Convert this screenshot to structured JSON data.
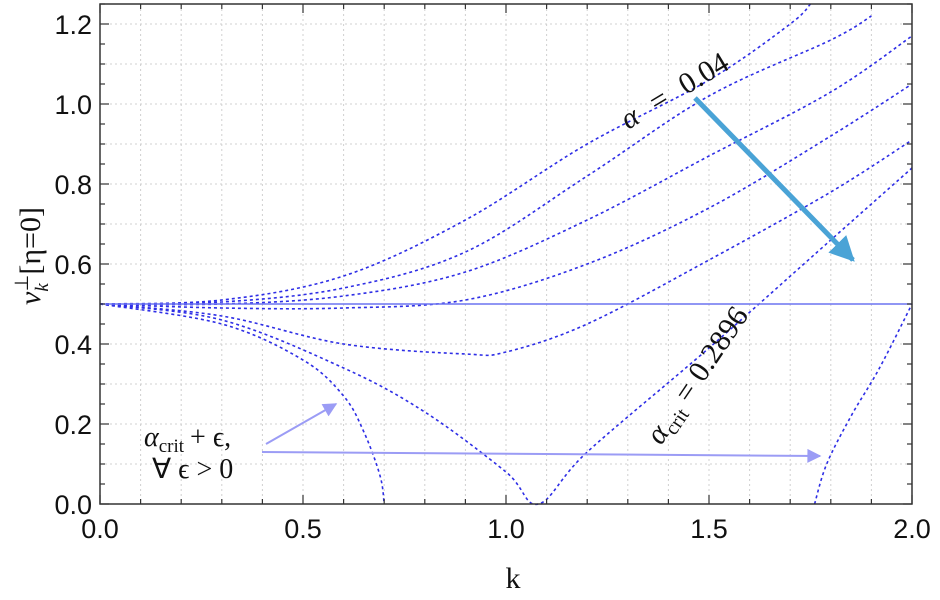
{
  "chart_data": {
    "type": "line",
    "xlabel": "k",
    "ylabel": "v_k^⊥[η=0]",
    "ylabel_parts": {
      "base": "v",
      "sub": "k",
      "sup": "⊥",
      "bracket": "[η=0]"
    },
    "xlim": [
      0,
      2.0
    ],
    "ylim": [
      0,
      1.25
    ],
    "x_ticks": [
      "0.0",
      "0.5",
      "1.0",
      "1.5",
      "2.0"
    ],
    "y_ticks": [
      "0.0",
      "0.2",
      "0.4",
      "0.6",
      "0.8",
      "1.0",
      "1.2"
    ],
    "grid": true,
    "series": [
      {
        "style": "dashed",
        "color": "#2e2ee6",
        "points": [
          [
            0,
            0.5
          ],
          [
            0.3,
            0.51
          ],
          [
            0.6,
            0.57
          ],
          [
            0.9,
            0.71
          ],
          [
            1.2,
            0.9
          ],
          [
            1.5,
            1.06
          ],
          [
            1.7,
            1.2
          ],
          [
            1.75,
            1.25
          ]
        ]
      },
      {
        "style": "dashed",
        "color": "#2e2ee6",
        "points": [
          [
            0,
            0.5
          ],
          [
            0.3,
            0.505
          ],
          [
            0.6,
            0.54
          ],
          [
            0.9,
            0.63
          ],
          [
            1.2,
            0.82
          ],
          [
            1.5,
            1.02
          ],
          [
            1.8,
            1.16
          ],
          [
            1.9,
            1.22
          ]
        ]
      },
      {
        "style": "dashed",
        "color": "#2e2ee6",
        "points": [
          [
            0,
            0.5
          ],
          [
            0.3,
            0.5
          ],
          [
            0.6,
            0.52
          ],
          [
            0.9,
            0.58
          ],
          [
            1.2,
            0.71
          ],
          [
            1.5,
            0.87
          ],
          [
            1.8,
            1.03
          ],
          [
            2.0,
            1.17
          ]
        ]
      },
      {
        "style": "dashed",
        "color": "#2e2ee6",
        "points": [
          [
            0,
            0.5
          ],
          [
            0.3,
            0.49
          ],
          [
            0.6,
            0.49
          ],
          [
            0.9,
            0.51
          ],
          [
            1.2,
            0.6
          ],
          [
            1.5,
            0.74
          ],
          [
            1.8,
            0.92
          ],
          [
            2.0,
            1.05
          ]
        ]
      },
      {
        "style": "dashed",
        "color": "#2e2ee6",
        "points": [
          [
            0,
            0.5
          ],
          [
            0.3,
            0.47
          ],
          [
            0.6,
            0.4
          ],
          [
            0.9,
            0.375
          ],
          [
            1.0,
            0.38
          ],
          [
            1.2,
            0.45
          ],
          [
            1.5,
            0.61
          ],
          [
            1.8,
            0.78
          ],
          [
            2.0,
            0.91
          ]
        ]
      },
      {
        "style": "dashed",
        "color": "#2e2ee6",
        "points": [
          [
            0,
            0.5
          ],
          [
            0.3,
            0.46
          ],
          [
            0.6,
            0.34
          ],
          [
            0.8,
            0.23
          ],
          [
            1.0,
            0.08
          ],
          [
            1.08,
            0.0
          ],
          [
            1.2,
            0.13
          ],
          [
            1.5,
            0.39
          ],
          [
            1.8,
            0.66
          ],
          [
            2.0,
            0.84
          ]
        ]
      },
      {
        "style": "dashed",
        "color": "#2e2ee6",
        "points": [
          [
            0,
            0.5
          ],
          [
            0.3,
            0.45
          ],
          [
            0.5,
            0.36
          ],
          [
            0.6,
            0.27
          ],
          [
            0.65,
            0.18
          ],
          [
            0.69,
            0.07
          ],
          [
            0.7,
            0.0
          ]
        ]
      },
      {
        "style": "dashed",
        "color": "#2e2ee6",
        "points": [
          [
            1.76,
            0.0
          ],
          [
            1.79,
            0.1
          ],
          [
            1.85,
            0.22
          ],
          [
            1.92,
            0.34
          ],
          [
            2.0,
            0.5
          ]
        ]
      },
      {
        "style": "solid",
        "color": "#6b73f0",
        "points": [
          [
            0,
            0.5
          ],
          [
            2.0,
            0.5
          ]
        ]
      }
    ],
    "annotations": {
      "alpha_top": {
        "symbol": "α",
        "equals": "=",
        "value": "0.04"
      },
      "alpha_crit": {
        "symbol": "α",
        "sub": "crit",
        "equals": "=",
        "value": "0.2896"
      },
      "alpha_eps_line1": {
        "symbol": "α",
        "sub": "crit",
        "rest": "+ ϵ,"
      },
      "alpha_eps_line2": "∀ ϵ > 0"
    },
    "colors": {
      "curve": "#2e2ee6",
      "reference_line": "#6b73f0",
      "big_arrow": "#4aa3d6",
      "small_arrow": "#9b9cf5",
      "grid": "#d0d0d0"
    }
  }
}
